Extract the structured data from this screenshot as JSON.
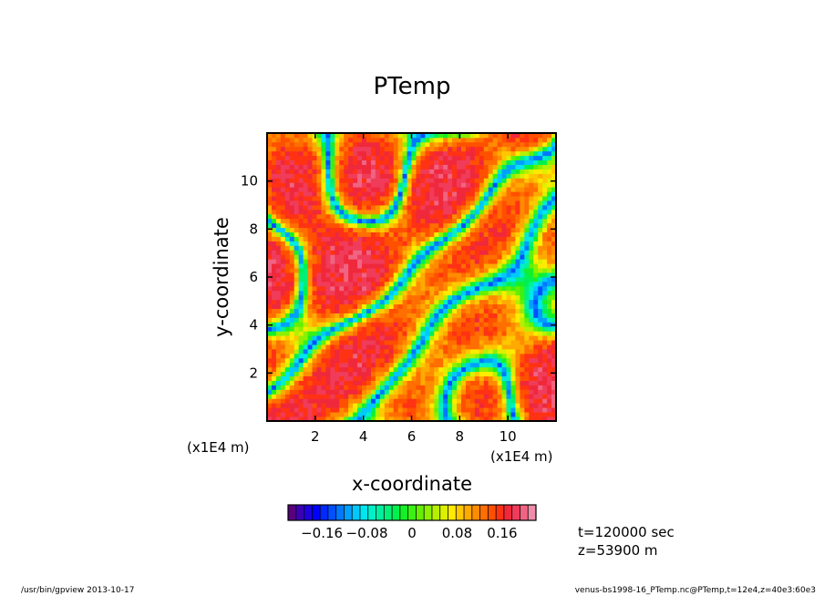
{
  "chart_data": {
    "type": "heatmap",
    "title": "PTemp",
    "xlabel": "x-coordinate",
    "ylabel": "y-coordinate",
    "x_unit": "(x1E4 m)",
    "y_unit": "(x1E4 m)",
    "xlim": [
      0,
      12
    ],
    "ylim": [
      0,
      12
    ],
    "x_ticks": [
      {
        "value": 2,
        "label": "2"
      },
      {
        "value": 4,
        "label": "4"
      },
      {
        "value": 6,
        "label": "6"
      },
      {
        "value": 8,
        "label": "8"
      },
      {
        "value": 10,
        "label": "10"
      }
    ],
    "y_ticks": [
      {
        "value": 2,
        "label": "2"
      },
      {
        "value": 4,
        "label": "4"
      },
      {
        "value": 6,
        "label": "6"
      },
      {
        "value": 8,
        "label": "8"
      },
      {
        "value": 10,
        "label": "10"
      }
    ],
    "colorbar": {
      "range": [
        -0.22,
        0.22
      ],
      "ticks": [
        {
          "value": -0.16,
          "label": "−0.16"
        },
        {
          "value": -0.08,
          "label": "−0.08"
        },
        {
          "value": 0,
          "label": "0"
        },
        {
          "value": 0.08,
          "label": "0.08"
        },
        {
          "value": 0.16,
          "label": "0.16"
        }
      ],
      "colors": [
        "#5a007f",
        "#3c00b4",
        "#1e00dc",
        "#0000ff",
        "#0028ff",
        "#0050ff",
        "#0078ff",
        "#00a0ff",
        "#00c8ff",
        "#00e6f0",
        "#00f0c8",
        "#00f0a0",
        "#00f078",
        "#00f050",
        "#14f028",
        "#3cf014",
        "#64f000",
        "#8cf000",
        "#b4f000",
        "#dcf000",
        "#ffeb00",
        "#ffc800",
        "#ffaa00",
        "#ff8c00",
        "#ff6e00",
        "#ff5000",
        "#ff3214",
        "#f0283c",
        "#f03c5a",
        "#f06482",
        "#f08caa"
      ]
    },
    "field_legend_note": ""
  },
  "annotations": {
    "time": "t=120000 sec",
    "height": "z=53900 m"
  },
  "footer": {
    "left": "/usr/bin/gpview   2013-10-17",
    "right": "venus-bs1998-16_PTemp.nc@PTemp,t=12e4,z=40e3:60e3"
  }
}
